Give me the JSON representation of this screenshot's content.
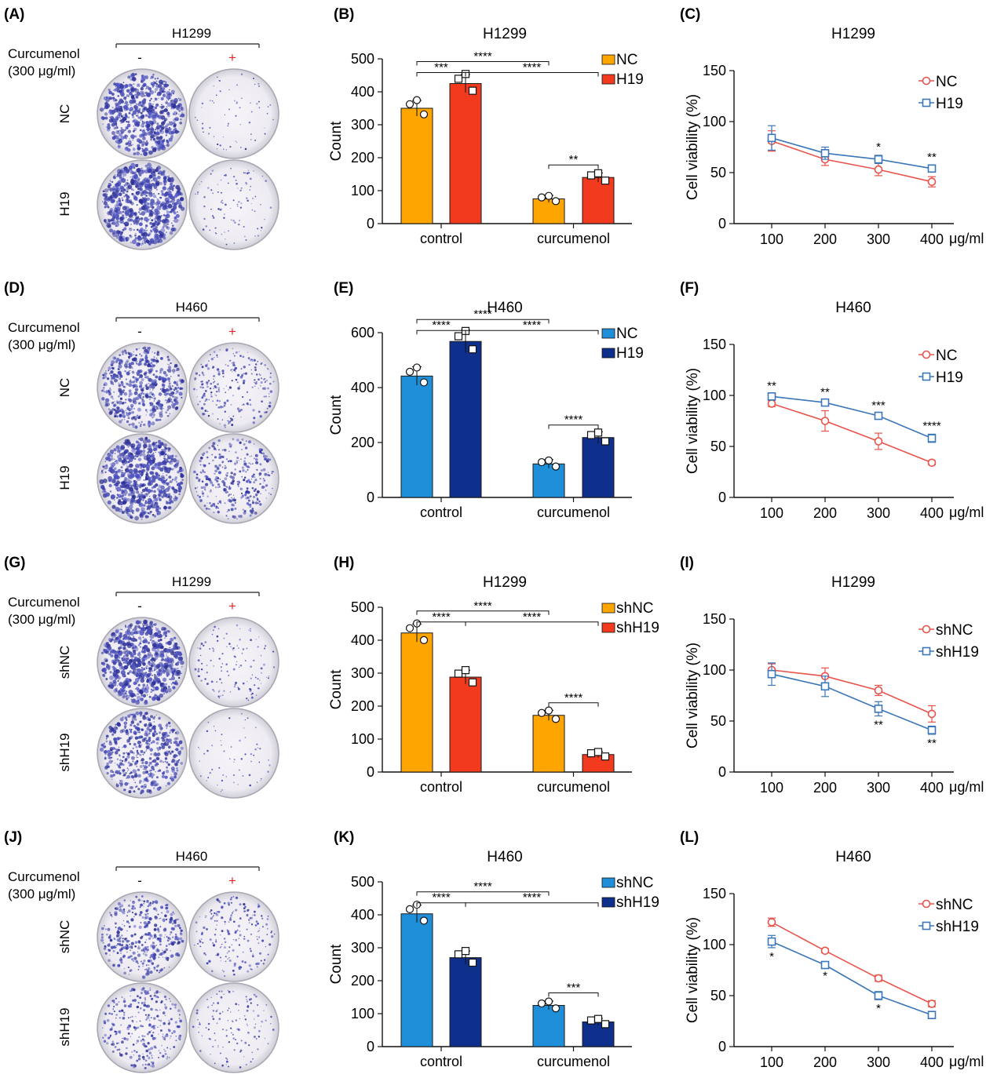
{
  "rows": [
    {
      "dish": {
        "label": "(A)",
        "title": "H1299",
        "cond_line1": "Curcumenol",
        "cond_line2": "(300 μg/ml)",
        "minus": "-",
        "plus": "+",
        "row1": "NC",
        "row2": "H19",
        "density": [
          0.9,
          0.05,
          1.0,
          0.1
        ]
      },
      "bar": {
        "label": "(B)",
        "title": "H1299",
        "ylabel": "Count",
        "ylim": [
          0,
          500
        ],
        "yticks": [
          0,
          100,
          200,
          300,
          400,
          500
        ],
        "categories": [
          "control",
          "curcumenol"
        ],
        "series": [
          {
            "name": "NC",
            "color": "#FFA500",
            "values": [
              350,
              75
            ]
          },
          {
            "name": "H19",
            "color": "#F23A1E",
            "values": [
              425,
              140
            ]
          }
        ],
        "sig": [
          {
            "from": [
              0,
              0
            ],
            "to": [
              0,
              1
            ],
            "text": "***"
          },
          {
            "from": [
              0,
              0
            ],
            "to": [
              1,
              0
            ],
            "text": "****"
          },
          {
            "from": [
              0,
              1
            ],
            "to": [
              1,
              1
            ],
            "text": "****"
          },
          {
            "from": [
              1,
              0
            ],
            "to": [
              1,
              1
            ],
            "text": "**"
          }
        ]
      },
      "line": {
        "label": "(C)",
        "title": "H1299",
        "ylabel": "Cell viability (%)",
        "ylim": [
          0,
          150
        ],
        "yticks": [
          0,
          50,
          100,
          150
        ],
        "x": [
          100,
          200,
          300,
          400
        ],
        "xunit": "μg/ml",
        "series": [
          {
            "name": "NC",
            "color": "#E8534B",
            "marker": "circle",
            "values": [
              81,
              63,
              53,
              41
            ],
            "err": [
              10,
              6,
              6,
              5
            ]
          },
          {
            "name": "H19",
            "color": "#3A76B8",
            "marker": "square",
            "values": [
              84,
              69,
              63,
              54
            ],
            "err": [
              12,
              6,
              4,
              3
            ]
          }
        ],
        "stars": [
          {
            "x": 300,
            "text": "*",
            "pos": "above"
          },
          {
            "x": 400,
            "text": "**",
            "pos": "above"
          }
        ]
      }
    },
    {
      "dish": {
        "label": "(D)",
        "title": "H460",
        "cond_line1": "Curcumenol",
        "cond_line2": "(300 μg/ml)",
        "minus": "-",
        "plus": "+",
        "row1": "NC",
        "row2": "H19",
        "density": [
          0.75,
          0.3,
          1.0,
          0.45
        ]
      },
      "bar": {
        "label": "(E)",
        "title": "H460",
        "ylabel": "Count",
        "ylim": [
          0,
          600
        ],
        "yticks": [
          0,
          200,
          400,
          600
        ],
        "categories": [
          "control",
          "curcumenol"
        ],
        "series": [
          {
            "name": "NC",
            "color": "#1F8FDA",
            "values": [
              442,
              122
            ]
          },
          {
            "name": "H19",
            "color": "#0F2F8C",
            "values": [
              568,
              218
            ]
          }
        ],
        "sig": [
          {
            "from": [
              0,
              0
            ],
            "to": [
              0,
              1
            ],
            "text": "****"
          },
          {
            "from": [
              0,
              0
            ],
            "to": [
              1,
              0
            ],
            "text": "****"
          },
          {
            "from": [
              0,
              1
            ],
            "to": [
              1,
              1
            ],
            "text": "****"
          },
          {
            "from": [
              1,
              0
            ],
            "to": [
              1,
              1
            ],
            "text": "****"
          }
        ]
      },
      "line": {
        "label": "(F)",
        "title": "H460",
        "ylabel": "Cell viability (%)",
        "ylim": [
          0,
          150
        ],
        "yticks": [
          0,
          50,
          100,
          150
        ],
        "x": [
          100,
          200,
          300,
          400
        ],
        "xunit": "μg/ml",
        "series": [
          {
            "name": "NC",
            "color": "#E8534B",
            "marker": "circle",
            "values": [
              92,
              75,
              55,
              34
            ],
            "err": [
              3,
              10,
              8,
              2
            ]
          },
          {
            "name": "H19",
            "color": "#3A76B8",
            "marker": "square",
            "values": [
              99,
              93,
              80,
              58
            ],
            "err": [
              2,
              2,
              2,
              4
            ]
          }
        ],
        "stars": [
          {
            "x": 100,
            "text": "**",
            "pos": "above"
          },
          {
            "x": 200,
            "text": "**",
            "pos": "above"
          },
          {
            "x": 300,
            "text": "***",
            "pos": "above"
          },
          {
            "x": 400,
            "text": "****",
            "pos": "above"
          }
        ]
      }
    },
    {
      "dish": {
        "label": "(G)",
        "title": "H1299",
        "cond_line1": "Curcumenol",
        "cond_line2": "(300 μg/ml)",
        "minus": "-",
        "plus": "+",
        "row1": "shNC",
        "row2": "shH19",
        "density": [
          1.0,
          0.15,
          0.7,
          0.05
        ]
      },
      "bar": {
        "label": "(H)",
        "title": "H1299",
        "ylabel": "Count",
        "ylim": [
          0,
          500
        ],
        "yticks": [
          0,
          100,
          200,
          300,
          400,
          500
        ],
        "categories": [
          "control",
          "curcumenol"
        ],
        "series": [
          {
            "name": "shNC",
            "color": "#FFA500",
            "values": [
              422,
              172
            ]
          },
          {
            "name": "shH19",
            "color": "#F23A1E",
            "values": [
              288,
              53
            ]
          }
        ],
        "sig": [
          {
            "from": [
              0,
              0
            ],
            "to": [
              0,
              1
            ],
            "text": "****"
          },
          {
            "from": [
              0,
              0
            ],
            "to": [
              1,
              0
            ],
            "text": "****"
          },
          {
            "from": [
              0,
              1
            ],
            "to": [
              1,
              1
            ],
            "text": "****"
          },
          {
            "from": [
              1,
              0
            ],
            "to": [
              1,
              1
            ],
            "text": "****"
          }
        ]
      },
      "line": {
        "label": "(I)",
        "title": "H1299",
        "ylabel": "Cell viability (%)",
        "ylim": [
          0,
          150
        ],
        "yticks": [
          0,
          50,
          100,
          150
        ],
        "x": [
          100,
          200,
          300,
          400
        ],
        "xunit": "μg/ml",
        "series": [
          {
            "name": "shNC",
            "color": "#E8534B",
            "marker": "circle",
            "values": [
              100,
              94,
              80,
              57
            ],
            "err": [
              6,
              8,
              5,
              8
            ]
          },
          {
            "name": "shH19",
            "color": "#3A76B8",
            "marker": "square",
            "values": [
              96,
              84,
              62,
              41
            ],
            "err": [
              11,
              10,
              7,
              4
            ]
          }
        ],
        "stars": [
          {
            "x": 300,
            "text": "**",
            "pos": "below"
          },
          {
            "x": 400,
            "text": "**",
            "pos": "below"
          }
        ]
      }
    },
    {
      "dish": {
        "label": "(J)",
        "title": "H460",
        "cond_line1": "Curcumenol",
        "cond_line2": "(300 μg/ml)",
        "minus": "-",
        "plus": "+",
        "row1": "shNC",
        "row2": "shH19",
        "density": [
          0.55,
          0.25,
          0.4,
          0.15
        ]
      },
      "bar": {
        "label": "(K)",
        "title": "H460",
        "ylabel": "Count",
        "ylim": [
          0,
          500
        ],
        "yticks": [
          0,
          100,
          200,
          300,
          400,
          500
        ],
        "categories": [
          "control",
          "curcumenol"
        ],
        "series": [
          {
            "name": "shNC",
            "color": "#1F8FDA",
            "values": [
              403,
              125
            ]
          },
          {
            "name": "shH19",
            "color": "#0F2F8C",
            "values": [
              270,
              75
            ]
          }
        ],
        "sig": [
          {
            "from": [
              0,
              0
            ],
            "to": [
              0,
              1
            ],
            "text": "****"
          },
          {
            "from": [
              0,
              0
            ],
            "to": [
              1,
              0
            ],
            "text": "****"
          },
          {
            "from": [
              0,
              1
            ],
            "to": [
              1,
              1
            ],
            "text": "****"
          },
          {
            "from": [
              1,
              0
            ],
            "to": [
              1,
              1
            ],
            "text": "***"
          }
        ]
      },
      "line": {
        "label": "(L)",
        "title": "H460",
        "ylabel": "Cell viability (%)",
        "ylim": [
          0,
          150
        ],
        "yticks": [
          0,
          50,
          100,
          150
        ],
        "x": [
          100,
          200,
          300,
          400
        ],
        "xunit": "μg/ml",
        "series": [
          {
            "name": "shNC",
            "color": "#E8534B",
            "marker": "circle",
            "values": [
              122,
              94,
              67,
              42
            ],
            "err": [
              4,
              2,
              3,
              3
            ]
          },
          {
            "name": "shH19",
            "color": "#3A76B8",
            "marker": "square",
            "values": [
              103,
              80,
              50,
              31
            ],
            "err": [
              6,
              2,
              4,
              2
            ]
          }
        ],
        "stars": [
          {
            "x": 100,
            "text": "*",
            "pos": "below"
          },
          {
            "x": 200,
            "text": "*",
            "pos": "below"
          },
          {
            "x": 300,
            "text": "*",
            "pos": "below"
          }
        ]
      }
    }
  ],
  "chart_data": [
    {
      "panel": "B",
      "type": "bar",
      "title": "H1299",
      "ylabel": "Count",
      "ylim": [
        0,
        500
      ],
      "categories": [
        "control",
        "curcumenol"
      ],
      "series": [
        {
          "name": "NC",
          "values": [
            350,
            75
          ]
        },
        {
          "name": "H19",
          "values": [
            425,
            140
          ]
        }
      ]
    },
    {
      "panel": "C",
      "type": "line",
      "title": "H1299",
      "ylabel": "Cell viability (%)",
      "ylim": [
        0,
        150
      ],
      "x": [
        100,
        200,
        300,
        400
      ],
      "series": [
        {
          "name": "NC",
          "values": [
            81,
            63,
            53,
            41
          ]
        },
        {
          "name": "H19",
          "values": [
            84,
            69,
            63,
            54
          ]
        }
      ]
    },
    {
      "panel": "E",
      "type": "bar",
      "title": "H460",
      "ylabel": "Count",
      "ylim": [
        0,
        600
      ],
      "categories": [
        "control",
        "curcumenol"
      ],
      "series": [
        {
          "name": "NC",
          "values": [
            442,
            122
          ]
        },
        {
          "name": "H19",
          "values": [
            568,
            218
          ]
        }
      ]
    },
    {
      "panel": "F",
      "type": "line",
      "title": "H460",
      "ylabel": "Cell viability (%)",
      "ylim": [
        0,
        150
      ],
      "x": [
        100,
        200,
        300,
        400
      ],
      "series": [
        {
          "name": "NC",
          "values": [
            92,
            75,
            55,
            34
          ]
        },
        {
          "name": "H19",
          "values": [
            99,
            93,
            80,
            58
          ]
        }
      ]
    },
    {
      "panel": "H",
      "type": "bar",
      "title": "H1299",
      "ylabel": "Count",
      "ylim": [
        0,
        500
      ],
      "categories": [
        "control",
        "curcumenol"
      ],
      "series": [
        {
          "name": "shNC",
          "values": [
            422,
            172
          ]
        },
        {
          "name": "shH19",
          "values": [
            288,
            53
          ]
        }
      ]
    },
    {
      "panel": "I",
      "type": "line",
      "title": "H1299",
      "ylabel": "Cell viability (%)",
      "ylim": [
        0,
        150
      ],
      "x": [
        100,
        200,
        300,
        400
      ],
      "series": [
        {
          "name": "shNC",
          "values": [
            100,
            94,
            80,
            57
          ]
        },
        {
          "name": "shH19",
          "values": [
            96,
            84,
            62,
            41
          ]
        }
      ]
    },
    {
      "panel": "K",
      "type": "bar",
      "title": "H460",
      "ylabel": "Count",
      "ylim": [
        0,
        500
      ],
      "categories": [
        "control",
        "curcumenol"
      ],
      "series": [
        {
          "name": "shNC",
          "values": [
            403,
            125
          ]
        },
        {
          "name": "shH19",
          "values": [
            270,
            75
          ]
        }
      ]
    },
    {
      "panel": "L",
      "type": "line",
      "title": "H460",
      "ylabel": "Cell viability (%)",
      "ylim": [
        0,
        150
      ],
      "x": [
        100,
        200,
        300,
        400
      ],
      "series": [
        {
          "name": "shNC",
          "values": [
            122,
            94,
            67,
            42
          ]
        },
        {
          "name": "shH19",
          "values": [
            103,
            80,
            50,
            31
          ]
        }
      ]
    }
  ]
}
